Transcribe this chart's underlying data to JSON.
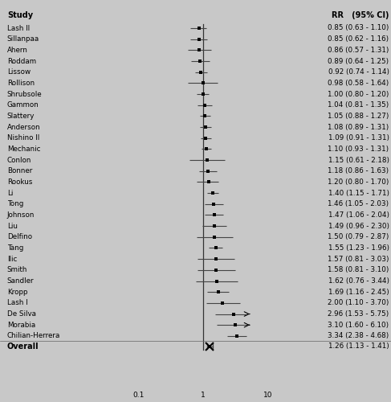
{
  "studies": [
    {
      "name": "Lash II",
      "rr": 0.85,
      "ci_lo": 0.63,
      "ci_hi": 1.1,
      "clipped_hi": false
    },
    {
      "name": "Sillanpaa",
      "rr": 0.85,
      "ci_lo": 0.62,
      "ci_hi": 1.16,
      "clipped_hi": false
    },
    {
      "name": "Ahern",
      "rr": 0.86,
      "ci_lo": 0.57,
      "ci_hi": 1.31,
      "clipped_hi": false
    },
    {
      "name": "Roddam",
      "rr": 0.89,
      "ci_lo": 0.64,
      "ci_hi": 1.25,
      "clipped_hi": false
    },
    {
      "name": "Lissow",
      "rr": 0.92,
      "ci_lo": 0.74,
      "ci_hi": 1.14,
      "clipped_hi": false
    },
    {
      "name": "Rollison",
      "rr": 0.98,
      "ci_lo": 0.58,
      "ci_hi": 1.64,
      "clipped_hi": false
    },
    {
      "name": "Shrubsole",
      "rr": 1.0,
      "ci_lo": 0.8,
      "ci_hi": 1.2,
      "clipped_hi": false
    },
    {
      "name": "Gammon",
      "rr": 1.04,
      "ci_lo": 0.81,
      "ci_hi": 1.35,
      "clipped_hi": false
    },
    {
      "name": "Slattery",
      "rr": 1.05,
      "ci_lo": 0.88,
      "ci_hi": 1.27,
      "clipped_hi": false
    },
    {
      "name": "Anderson",
      "rr": 1.08,
      "ci_lo": 0.89,
      "ci_hi": 1.31,
      "clipped_hi": false
    },
    {
      "name": "Nishino II",
      "rr": 1.09,
      "ci_lo": 0.91,
      "ci_hi": 1.31,
      "clipped_hi": false
    },
    {
      "name": "Mechanic",
      "rr": 1.1,
      "ci_lo": 0.93,
      "ci_hi": 1.31,
      "clipped_hi": false
    },
    {
      "name": "Conlon",
      "rr": 1.15,
      "ci_lo": 0.61,
      "ci_hi": 2.18,
      "clipped_hi": false
    },
    {
      "name": "Bonner",
      "rr": 1.18,
      "ci_lo": 0.86,
      "ci_hi": 1.63,
      "clipped_hi": false
    },
    {
      "name": "Rookus",
      "rr": 1.2,
      "ci_lo": 0.8,
      "ci_hi": 1.7,
      "clipped_hi": false
    },
    {
      "name": "Li",
      "rr": 1.4,
      "ci_lo": 1.15,
      "ci_hi": 1.71,
      "clipped_hi": false
    },
    {
      "name": "Tong",
      "rr": 1.46,
      "ci_lo": 1.05,
      "ci_hi": 2.03,
      "clipped_hi": false
    },
    {
      "name": "Johnson",
      "rr": 1.47,
      "ci_lo": 1.06,
      "ci_hi": 2.04,
      "clipped_hi": false
    },
    {
      "name": "Liu",
      "rr": 1.49,
      "ci_lo": 0.96,
      "ci_hi": 2.3,
      "clipped_hi": false
    },
    {
      "name": "Delfino",
      "rr": 1.5,
      "ci_lo": 0.79,
      "ci_hi": 2.87,
      "clipped_hi": false
    },
    {
      "name": "Tang",
      "rr": 1.55,
      "ci_lo": 1.23,
      "ci_hi": 1.96,
      "clipped_hi": false
    },
    {
      "name": "Ilic",
      "rr": 1.57,
      "ci_lo": 0.81,
      "ci_hi": 3.03,
      "clipped_hi": false
    },
    {
      "name": "Smith",
      "rr": 1.58,
      "ci_lo": 0.81,
      "ci_hi": 3.1,
      "clipped_hi": false
    },
    {
      "name": "Sandler",
      "rr": 1.62,
      "ci_lo": 0.76,
      "ci_hi": 3.44,
      "clipped_hi": false
    },
    {
      "name": "Kropp",
      "rr": 1.69,
      "ci_lo": 1.16,
      "ci_hi": 2.45,
      "clipped_hi": false
    },
    {
      "name": "Lash I",
      "rr": 2.0,
      "ci_lo": 1.1,
      "ci_hi": 3.7,
      "clipped_hi": false
    },
    {
      "name": "De Silva",
      "rr": 2.96,
      "ci_lo": 1.53,
      "ci_hi": 5.75,
      "clipped_hi": true
    },
    {
      "name": "Morabia",
      "rr": 3.1,
      "ci_lo": 1.6,
      "ci_hi": 6.1,
      "clipped_hi": true
    },
    {
      "name": "Chilian-Herrera",
      "rr": 3.34,
      "ci_lo": 2.38,
      "ci_hi": 4.68,
      "clipped_hi": false
    }
  ],
  "overall": {
    "rr": 1.26,
    "ci_lo": 1.13,
    "ci_hi": 1.41
  },
  "xmin": 0.1,
  "xmax": 10.0,
  "clip_at": 4.8,
  "bg_color": "#c8c8c8",
  "text_color": "#000000",
  "line_color": "#444444",
  "marker_color": "#000000",
  "title_col1": "Study",
  "title_col2": "RR   (95% CI)",
  "overall_label": "Overall",
  "fontsize_header": 7.0,
  "fontsize_study": 6.3,
  "fontsize_ci": 6.3,
  "fontsize_tick": 6.5
}
